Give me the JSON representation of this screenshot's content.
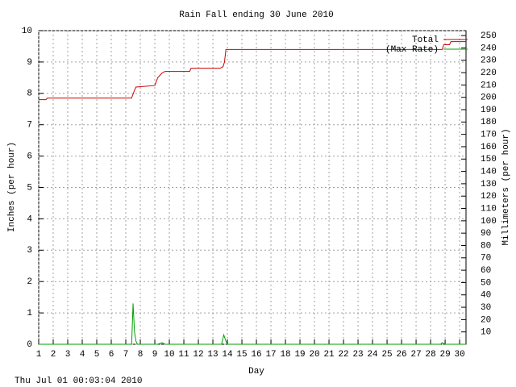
{
  "chart_data": {
    "type": "line",
    "title": "Rain Fall ending 30 June 2010",
    "x_label": "Day",
    "y_label": "Inches (per hour)",
    "y2_label": "Millimeters (per hour)",
    "footer": "Thu Jul 01 00:03:04 2010",
    "xlim": [
      1,
      30.44
    ],
    "xticks": [
      1,
      2,
      3,
      4,
      5,
      6,
      7,
      8,
      9,
      10,
      11,
      12,
      13,
      14,
      15,
      16,
      17,
      18,
      19,
      20,
      21,
      22,
      23,
      24,
      25,
      26,
      27,
      28,
      29,
      30
    ],
    "ylim": [
      0,
      10
    ],
    "yticks": [
      0,
      1,
      2,
      3,
      4,
      5,
      6,
      7,
      8,
      9,
      10
    ],
    "y2lim": [
      0,
      254
    ],
    "y2ticks": [
      10,
      20,
      30,
      40,
      50,
      60,
      70,
      80,
      90,
      100,
      110,
      120,
      130,
      140,
      150,
      160,
      170,
      180,
      190,
      200,
      210,
      220,
      230,
      240,
      250
    ],
    "grid": true,
    "legend": "upper right",
    "series": [
      {
        "name": "Total",
        "color": "#cc0000",
        "x": [
          1,
          1.5,
          1.6,
          7.4,
          7.6,
          7.7,
          9.0,
          9.2,
          9.5,
          9.7,
          11.4,
          11.5,
          13.5,
          13.7,
          13.8,
          13.9,
          28.8,
          28.9,
          29.3,
          29.4,
          30.44
        ],
        "values": [
          7.8,
          7.8,
          7.85,
          7.85,
          8.1,
          8.2,
          8.25,
          8.5,
          8.65,
          8.7,
          8.7,
          8.8,
          8.8,
          8.85,
          9.0,
          9.4,
          9.4,
          9.55,
          9.55,
          9.65,
          9.65
        ]
      },
      {
        "name": "(Max Rate)",
        "color": "#00a000",
        "x": [
          1,
          7.4,
          7.45,
          7.5,
          7.6,
          7.7,
          7.8,
          9.2,
          9.5,
          9.7,
          13.6,
          13.75,
          13.9,
          14.0,
          28.7,
          28.8,
          29,
          30.44
        ],
        "values": [
          0,
          0,
          0.6,
          1.3,
          0.4,
          0.1,
          0,
          0,
          0.05,
          0,
          0,
          0.3,
          0.1,
          0,
          0,
          0.05,
          0,
          0
        ]
      }
    ]
  }
}
